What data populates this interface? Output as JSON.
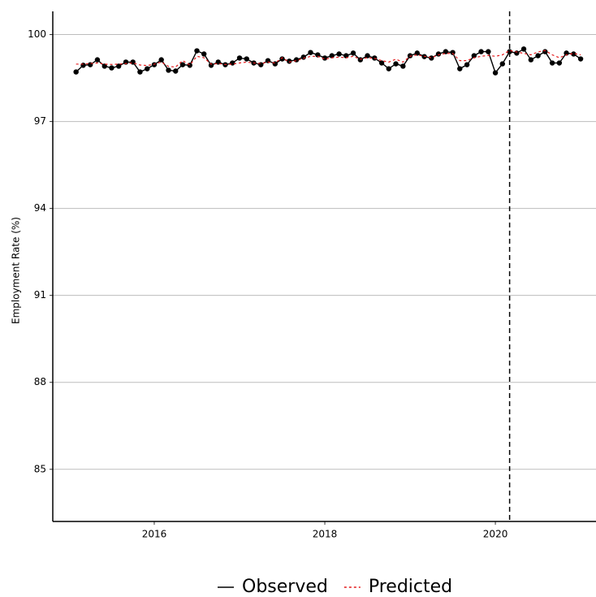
{
  "chart_data": {
    "type": "line",
    "y_label": "Employment Rate (%)",
    "x": [
      2015.083,
      2015.167,
      2015.25,
      2015.333,
      2015.417,
      2015.5,
      2015.583,
      2015.667,
      2015.75,
      2015.833,
      2015.917,
      2016,
      2016.083,
      2016.167,
      2016.25,
      2016.333,
      2016.417,
      2016.5,
      2016.583,
      2016.667,
      2016.75,
      2016.833,
      2016.917,
      2017,
      2017.083,
      2017.167,
      2017.25,
      2017.333,
      2017.417,
      2017.5,
      2017.583,
      2017.667,
      2017.75,
      2017.833,
      2017.917,
      2018,
      2018.083,
      2018.167,
      2018.25,
      2018.333,
      2018.417,
      2018.5,
      2018.583,
      2018.667,
      2018.75,
      2018.833,
      2018.917,
      2019,
      2019.083,
      2019.167,
      2019.25,
      2019.333,
      2019.417,
      2019.5,
      2019.583,
      2019.667,
      2019.75,
      2019.833,
      2019.917,
      2020,
      2020.083,
      2020.167,
      2020.25,
      2020.333,
      2020.417,
      2020.5,
      2020.583,
      2020.667,
      2020.75,
      2020.833,
      2020.917,
      2021
    ],
    "series": [
      {
        "name": "Observed",
        "color": "#000000",
        "dash": false,
        "markers": true,
        "values": [
          98.71,
          98.94,
          98.96,
          99.13,
          98.91,
          98.85,
          98.91,
          99.05,
          99.05,
          98.71,
          98.82,
          98.96,
          99.13,
          98.77,
          98.74,
          98.96,
          98.94,
          99.44,
          99.33,
          98.94,
          99.05,
          98.96,
          99.02,
          99.19,
          99.16,
          99.02,
          98.96,
          99.1,
          98.99,
          99.16,
          99.08,
          99.13,
          99.22,
          99.38,
          99.3,
          99.19,
          99.27,
          99.33,
          99.27,
          99.36,
          99.13,
          99.27,
          99.19,
          99.02,
          98.82,
          98.99,
          98.91,
          99.27,
          99.36,
          99.24,
          99.19,
          99.33,
          99.41,
          99.38,
          98.82,
          98.96,
          99.27,
          99.41,
          99.41,
          98.68,
          98.99,
          99.41,
          99.36,
          99.5,
          99.13,
          99.27,
          99.41,
          99.02,
          99.02,
          99.36,
          99.33,
          99.16
        ]
      },
      {
        "name": "Predicted",
        "color": "#e41a1c",
        "dash": true,
        "markers": false,
        "values": [
          98.98,
          98.98,
          99.0,
          99.02,
          98.98,
          98.97,
          98.98,
          99.0,
          99.02,
          98.95,
          98.93,
          98.98,
          99.05,
          98.9,
          98.88,
          99.1,
          98.95,
          99.25,
          99.2,
          98.98,
          99.0,
          98.97,
          98.98,
          99.02,
          99.05,
          99.02,
          99.0,
          99.05,
          99.02,
          99.2,
          99.05,
          99.1,
          99.18,
          99.25,
          99.25,
          99.15,
          99.2,
          99.22,
          99.2,
          99.25,
          99.15,
          99.2,
          99.18,
          99.1,
          99.05,
          99.15,
          99.05,
          99.25,
          99.3,
          99.25,
          99.2,
          99.3,
          99.35,
          99.35,
          99.1,
          99.1,
          99.2,
          99.25,
          99.28,
          99.25,
          99.3,
          99.45,
          99.4,
          99.35,
          99.3,
          99.4,
          99.45,
          99.3,
          99.2,
          99.3,
          99.35,
          99.3
        ]
      }
    ],
    "vline": 2020.167,
    "xlim": [
      2014.81,
      2021.18
    ],
    "xticks": [
      2016,
      2018,
      2020
    ],
    "ylim": [
      83.2,
      100.8
    ],
    "yticks": [
      85,
      88,
      91,
      94,
      97,
      100
    ],
    "grid": true,
    "legend": "bottom"
  }
}
